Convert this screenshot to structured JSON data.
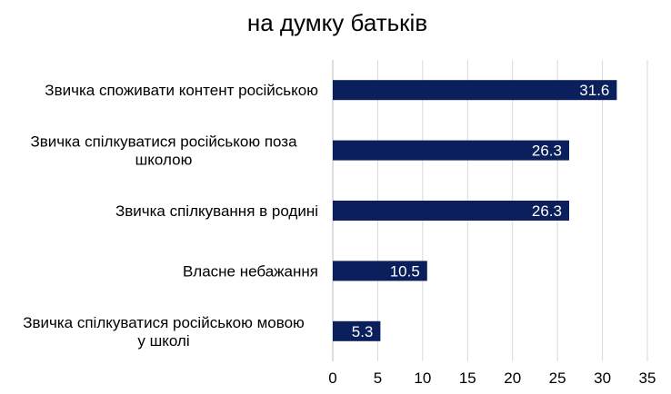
{
  "chart_data": {
    "type": "bar",
    "orientation": "horizontal",
    "title": "на думку  батьків",
    "categories": [
      [
        "Звичка споживати контент російською"
      ],
      [
        "Звичка спілкуватися  російською поза",
        "школою"
      ],
      [
        "Звичка спілкування  в родині"
      ],
      [
        "Власне небажання"
      ],
      [
        "Звичка спілкуватися  російською мовою",
        "у школі"
      ]
    ],
    "values": [
      31.6,
      26.3,
      26.3,
      10.5,
      5.3
    ],
    "data_labels": [
      "31.6",
      "26.3",
      "26.3",
      "10.5",
      "5.3"
    ],
    "xlim": [
      0,
      35
    ],
    "xticks": [
      "0",
      "5",
      "10",
      "15",
      "20",
      "25",
      "30",
      "35"
    ],
    "xtick_values": [
      0,
      5,
      10,
      15,
      20,
      25,
      30,
      35
    ],
    "grid": true,
    "legend": "none",
    "bar_color": "#0a1f5c",
    "label_color": "#ffffff"
  }
}
